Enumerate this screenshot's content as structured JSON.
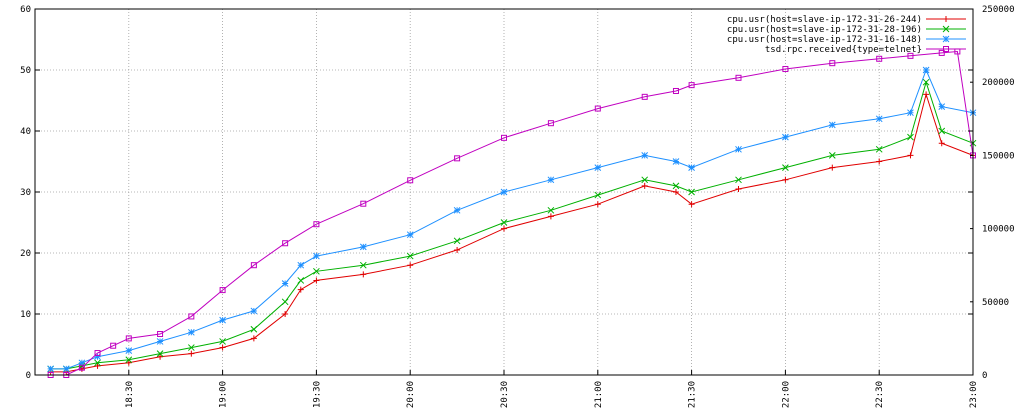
{
  "chart_data": {
    "type": "line",
    "title": "",
    "xlabel": "",
    "ylabel": "",
    "grid": true,
    "legend_placement": "top-right",
    "x_ticks": [
      "18:30",
      "19:00",
      "19:30",
      "20:00",
      "20:30",
      "21:00",
      "21:30",
      "22:00",
      "22:30",
      "23:00"
    ],
    "x_range": [
      "18:00",
      "23:00"
    ],
    "y_left": {
      "range": [
        0,
        60
      ],
      "ticks": [
        "0",
        "10",
        "20",
        "30",
        "40",
        "50",
        "60"
      ]
    },
    "y_right": {
      "range": [
        0,
        250000
      ],
      "ticks": [
        "0",
        "50000",
        "100000",
        "150000",
        "200000",
        "250000"
      ]
    },
    "series": [
      {
        "name": "cpu.usr(host=slave-ip-172-31-26-244)",
        "axis": "left",
        "color": "#e00000",
        "marker": "plus",
        "x": [
          "18:05",
          "18:10",
          "18:15",
          "18:20",
          "18:30",
          "18:40",
          "18:50",
          "19:00",
          "19:10",
          "19:20",
          "19:25",
          "19:30",
          "19:45",
          "20:00",
          "20:15",
          "20:30",
          "20:45",
          "21:00",
          "21:15",
          "21:25",
          "21:30",
          "21:45",
          "22:00",
          "22:15",
          "22:30",
          "22:40",
          "22:45",
          "22:50",
          "23:00"
        ],
        "values": [
          0.5,
          0.5,
          1,
          1.5,
          2,
          3,
          3.5,
          4.5,
          6,
          10,
          14,
          15.5,
          16.5,
          18,
          20.5,
          24,
          26,
          28,
          31,
          30,
          28,
          30.5,
          32,
          34,
          35,
          36,
          46,
          38,
          36
        ]
      },
      {
        "name": "cpu.usr(host=slave-ip-172-31-28-196)",
        "axis": "left",
        "color": "#00b000",
        "marker": "cross",
        "x": [
          "18:05",
          "18:10",
          "18:15",
          "18:20",
          "18:30",
          "18:40",
          "18:50",
          "19:00",
          "19:10",
          "19:20",
          "19:25",
          "19:30",
          "19:45",
          "20:00",
          "20:15",
          "20:30",
          "20:45",
          "21:00",
          "21:15",
          "21:25",
          "21:30",
          "21:45",
          "22:00",
          "22:15",
          "22:30",
          "22:40",
          "22:45",
          "22:50",
          "23:00"
        ],
        "values": [
          1,
          1,
          1.5,
          2,
          2.5,
          3.5,
          4.5,
          5.5,
          7.5,
          12,
          15.5,
          17,
          18,
          19.5,
          22,
          25,
          27,
          29.5,
          32,
          31,
          30,
          32,
          34,
          36,
          37,
          39,
          48,
          40,
          38
        ]
      },
      {
        "name": "cpu.usr(host=slave-ip-172-31-16-148)",
        "axis": "left",
        "color": "#1e90ff",
        "marker": "star",
        "x": [
          "18:05",
          "18:10",
          "18:15",
          "18:20",
          "18:30",
          "18:40",
          "18:50",
          "19:00",
          "19:10",
          "19:20",
          "19:25",
          "19:30",
          "19:45",
          "20:00",
          "20:15",
          "20:30",
          "20:45",
          "21:00",
          "21:15",
          "21:25",
          "21:30",
          "21:45",
          "22:00",
          "22:15",
          "22:30",
          "22:40",
          "22:45",
          "22:50",
          "23:00"
        ],
        "values": [
          1,
          1,
          2,
          3,
          4,
          5.5,
          7,
          9,
          10.5,
          15,
          18,
          19.5,
          21,
          23,
          27,
          30,
          32,
          34,
          36,
          35,
          34,
          37,
          39,
          41,
          42,
          43,
          50,
          44,
          43
        ]
      },
      {
        "name": "tsd.rpc.received{type=telnet}",
        "axis": "right",
        "color": "#c000c0",
        "marker": "square",
        "x": [
          "18:05",
          "18:10",
          "18:15",
          "18:20",
          "18:25",
          "18:30",
          "18:40",
          "18:50",
          "19:00",
          "19:10",
          "19:20",
          "19:30",
          "19:45",
          "20:00",
          "20:15",
          "20:30",
          "20:45",
          "21:00",
          "21:15",
          "21:25",
          "21:30",
          "21:45",
          "22:00",
          "22:15",
          "22:30",
          "22:40",
          "22:50",
          "22:55",
          "23:00"
        ],
        "values": [
          0,
          0,
          5000,
          15000,
          20000,
          25000,
          28000,
          40000,
          58000,
          75000,
          90000,
          103000,
          117000,
          133000,
          148000,
          162000,
          172000,
          182000,
          190000,
          194000,
          198000,
          203000,
          209000,
          213000,
          216000,
          218000,
          220000,
          221000,
          150000
        ]
      }
    ]
  }
}
